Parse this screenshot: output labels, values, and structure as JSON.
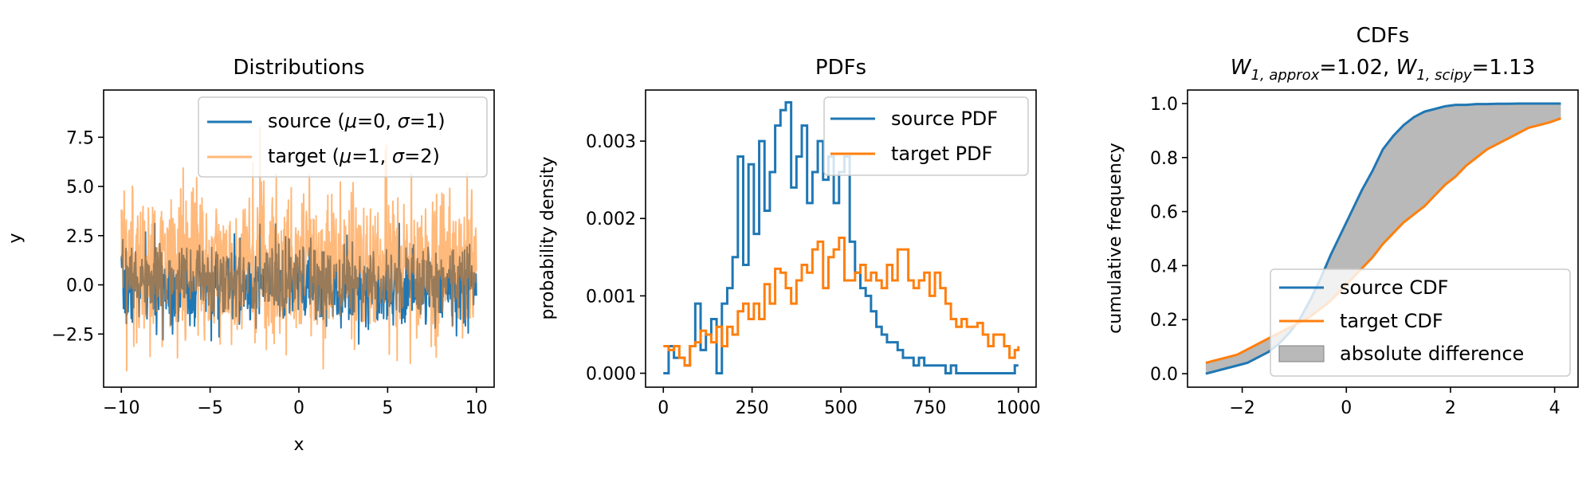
{
  "figure": {
    "background": "#ffffff",
    "colors": {
      "source": "#1f77b4",
      "target": "#ff7f0e",
      "fill": "#808080"
    }
  },
  "chart_data": [
    {
      "type": "line",
      "title": "Distributions",
      "xlabel": "x",
      "ylabel": "y",
      "xlim": [
        -11,
        11
      ],
      "ylim": [
        -5.2,
        9.9
      ],
      "xticks": [
        -10,
        -5,
        0,
        5,
        10
      ],
      "xtick_labels": [
        "−10",
        "−5",
        "0",
        "5",
        "10"
      ],
      "yticks": [
        -2.5,
        0.0,
        2.5,
        5.0,
        7.5
      ],
      "ytick_labels": [
        "−2.5",
        "0.0",
        "2.5",
        "5.0",
        "7.5"
      ],
      "grid": false,
      "legend_position": "upper right",
      "legend": [
        {
          "label": "source (μ=0, σ=1)",
          "pre": "source (",
          "mu": "μ",
          "mid": "=0, ",
          "sigma": "σ",
          "post": "=1)"
        },
        {
          "label": "target (μ=1, σ=2)",
          "pre": "target (",
          "mu": "μ",
          "mid": "=1, ",
          "sigma": "σ",
          "post": "=2)"
        }
      ],
      "series": [
        {
          "name": "source (μ=0, σ=1)",
          "distribution": "normal",
          "mean": 0,
          "std": 1,
          "x_range": [
            -10,
            10
          ],
          "n_points": 1000,
          "color": "#1f77b4"
        },
        {
          "name": "target (μ=1, σ=2)",
          "distribution": "normal",
          "mean": 1,
          "std": 2,
          "x_range": [
            -10,
            10
          ],
          "n_points": 1000,
          "color": "#ff7f0e",
          "alpha": 0.55
        }
      ]
    },
    {
      "type": "line",
      "title": "PDFs",
      "xlabel": "",
      "ylabel": "probability density",
      "xlim": [
        -50,
        1050
      ],
      "ylim": [
        -0.00018,
        0.00366
      ],
      "xticks": [
        0,
        250,
        500,
        750,
        1000
      ],
      "xtick_labels": [
        "0",
        "250",
        "500",
        "750",
        "1000"
      ],
      "yticks": [
        0.0,
        0.001,
        0.002,
        0.003
      ],
      "ytick_labels": [
        "0.000",
        "0.001",
        "0.002",
        "0.003"
      ],
      "grid": false,
      "legend_position": "upper right",
      "legend": [
        {
          "label": "source PDF"
        },
        {
          "label": "target PDF"
        }
      ],
      "x": [
        0,
        15,
        30,
        45,
        60,
        75,
        90,
        105,
        120,
        135,
        150,
        165,
        180,
        195,
        210,
        225,
        240,
        255,
        270,
        285,
        300,
        315,
        330,
        345,
        360,
        375,
        390,
        405,
        420,
        435,
        450,
        465,
        480,
        495,
        510,
        525,
        540,
        555,
        570,
        585,
        600,
        615,
        630,
        645,
        660,
        675,
        690,
        705,
        720,
        735,
        750,
        765,
        780,
        795,
        810,
        825,
        840,
        855,
        870,
        885,
        900,
        915,
        930,
        945,
        960,
        975,
        990,
        1000
      ],
      "series": [
        {
          "name": "source PDF",
          "color": "#1f77b4",
          "values": [
            0.0,
            0.00035,
            0.0002,
            0.0002,
            0.0001,
            0.00035,
            0.0009,
            0.0003,
            0.0005,
            0.0007,
            0.0,
            0.0009,
            0.0011,
            0.0015,
            0.0028,
            0.0014,
            0.0027,
            0.0018,
            0.003,
            0.0021,
            0.0026,
            0.0032,
            0.0034,
            0.0035,
            0.0024,
            0.0028,
            0.0032,
            0.0022,
            0.0026,
            0.003,
            0.0025,
            0.0028,
            0.0022,
            0.0026,
            0.0028,
            0.0017,
            0.0013,
            0.0011,
            0.001,
            0.0008,
            0.0006,
            0.0005,
            0.0004,
            0.0004,
            0.0003,
            0.0002,
            0.0002,
            0.0001,
            0.0002,
            0.0001,
            0.0001,
            0.0001,
            0.0001,
            0.0,
            0.0001,
            0.0,
            0.0,
            0.0,
            0.0,
            0.0,
            0.0,
            0.0,
            0.0,
            0.0,
            0.0,
            0.0,
            0.0001,
            0.0001
          ]
        },
        {
          "name": "target PDF",
          "color": "#ff7f0e",
          "values": [
            0.00035,
            0.0003,
            0.00035,
            0.0002,
            0.0001,
            0.00035,
            0.0004,
            0.00055,
            0.0005,
            0.0004,
            0.0006,
            0.00035,
            0.0006,
            0.0005,
            0.0008,
            0.0009,
            0.0007,
            0.0009,
            0.0007,
            0.00115,
            0.0009,
            0.00135,
            0.0013,
            0.0011,
            0.0009,
            0.0012,
            0.0014,
            0.0013,
            0.0016,
            0.0017,
            0.0011,
            0.0015,
            0.0016,
            0.00175,
            0.0012,
            0.0012,
            0.0013,
            0.0014,
            0.0012,
            0.0013,
            0.0012,
            0.0011,
            0.0014,
            0.0012,
            0.0016,
            0.0016,
            0.0012,
            0.0011,
            0.0012,
            0.0013,
            0.001,
            0.0013,
            0.0011,
            0.0009,
            0.0007,
            0.0006,
            0.0007,
            0.0006,
            0.0006,
            0.00065,
            0.0005,
            0.00035,
            0.0005,
            0.0005,
            0.00035,
            0.0002,
            0.0003,
            0.00035
          ]
        }
      ]
    },
    {
      "type": "area",
      "title": "CDFs",
      "subtitle_parts": {
        "w": "W",
        "sub1": "1, approx",
        "val1": "=1.02, ",
        "sub2": "1, scipy",
        "val2": "=1.13"
      },
      "xlabel": "",
      "ylabel": "cumulative frequency",
      "xlim": [
        -3.05,
        4.45
      ],
      "ylim": [
        -0.05,
        1.05
      ],
      "xticks": [
        -2,
        0,
        2,
        4
      ],
      "xtick_labels": [
        "−2",
        "0",
        "2",
        "4"
      ],
      "yticks": [
        0.0,
        0.2,
        0.4,
        0.6,
        0.8,
        1.0
      ],
      "ytick_labels": [
        "0.0",
        "0.2",
        "0.4",
        "0.6",
        "0.8",
        "1.0"
      ],
      "grid": false,
      "legend_position": "lower right",
      "legend": [
        {
          "label": "source CDF"
        },
        {
          "label": "target CDF"
        },
        {
          "label": "absolute difference"
        }
      ],
      "x": [
        -2.7,
        -2.5,
        -2.3,
        -2.1,
        -1.9,
        -1.7,
        -1.5,
        -1.3,
        -1.1,
        -0.9,
        -0.7,
        -0.5,
        -0.3,
        -0.1,
        0.1,
        0.3,
        0.5,
        0.7,
        0.9,
        1.1,
        1.3,
        1.5,
        1.7,
        1.9,
        2.1,
        2.3,
        2.5,
        2.7,
        2.9,
        3.1,
        3.3,
        3.5,
        3.7,
        3.9,
        4.12
      ],
      "series": [
        {
          "name": "source CDF",
          "color": "#1f77b4",
          "values": [
            0.0,
            0.01,
            0.02,
            0.03,
            0.04,
            0.06,
            0.08,
            0.11,
            0.15,
            0.2,
            0.27,
            0.35,
            0.44,
            0.52,
            0.6,
            0.68,
            0.75,
            0.83,
            0.88,
            0.92,
            0.95,
            0.97,
            0.98,
            0.99,
            0.995,
            0.995,
            0.998,
            0.998,
            0.999,
            0.999,
            1.0,
            1.0,
            1.0,
            1.0,
            1.0
          ]
        },
        {
          "name": "target CDF",
          "color": "#ff7f0e",
          "values": [
            0.04,
            0.05,
            0.06,
            0.07,
            0.09,
            0.11,
            0.13,
            0.15,
            0.17,
            0.19,
            0.21,
            0.24,
            0.27,
            0.31,
            0.35,
            0.39,
            0.43,
            0.48,
            0.52,
            0.56,
            0.59,
            0.62,
            0.66,
            0.7,
            0.73,
            0.77,
            0.8,
            0.83,
            0.85,
            0.87,
            0.89,
            0.91,
            0.92,
            0.93,
            0.945
          ]
        }
      ]
    }
  ]
}
